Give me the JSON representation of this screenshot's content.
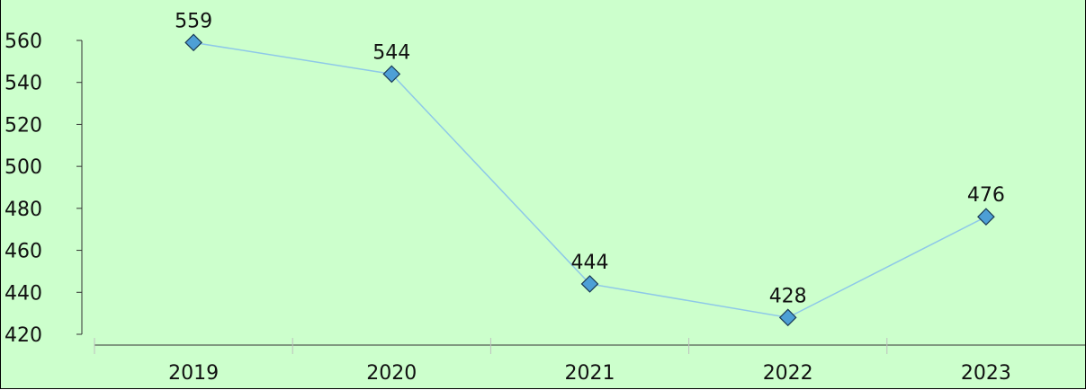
{
  "chart_data": {
    "type": "line",
    "title": "",
    "xlabel": "",
    "ylabel": "",
    "categories": [
      "2019",
      "2020",
      "2021",
      "2022",
      "2023"
    ],
    "series": [
      {
        "values": [
          559,
          544,
          444,
          428,
          476
        ]
      }
    ],
    "data_labels": [
      "559",
      "544",
      "444",
      "428",
      "476"
    ],
    "y_ticks": [
      "560",
      "540",
      "520",
      "500",
      "480",
      "460",
      "440",
      "420"
    ],
    "y_tick_values": [
      560,
      540,
      520,
      500,
      480,
      460,
      440,
      420
    ],
    "ylim": [
      420,
      560
    ],
    "grid": false,
    "legend": "none",
    "marker": "diamond",
    "colors": {
      "background": "#ccffcc",
      "line": "#8ec8e8",
      "marker_fill": "#4d9fd6",
      "marker_stroke": "#1a3a55",
      "axis": "#333333"
    }
  }
}
